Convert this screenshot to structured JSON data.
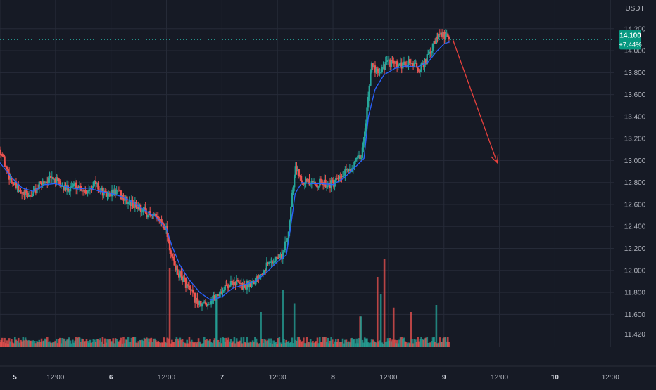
{
  "chart_data": {
    "type": "candlestick",
    "currency": "USDT",
    "price_scale": {
      "range": [
        11.34,
        14.32
      ],
      "ticks": [
        "14.200",
        "14.000",
        "13.800",
        "13.600",
        "13.400",
        "13.200",
        "13.000",
        "12.800",
        "12.600",
        "12.400",
        "12.200",
        "12.000",
        "11.800",
        "11.600",
        "11.420"
      ]
    },
    "time_axis": {
      "labels": [
        "5",
        "12:00",
        "6",
        "12:00",
        "7",
        "12:00",
        "8",
        "12:00",
        "9",
        "12:00",
        "10",
        "12:00"
      ],
      "range_days": [
        5.0,
        10.53
      ]
    },
    "last_price": {
      "value": "14.100",
      "change": "+7.44%",
      "level": 14.1
    },
    "price_path": [
      [
        5.0,
        13.1
      ],
      [
        5.05,
        12.95
      ],
      [
        5.1,
        12.82
      ],
      [
        5.18,
        12.7
      ],
      [
        5.28,
        12.68
      ],
      [
        5.38,
        12.8
      ],
      [
        5.48,
        12.84
      ],
      [
        5.58,
        12.74
      ],
      [
        5.68,
        12.78
      ],
      [
        5.78,
        12.72
      ],
      [
        5.85,
        12.8
      ],
      [
        5.95,
        12.68
      ],
      [
        6.05,
        12.72
      ],
      [
        6.15,
        12.62
      ],
      [
        6.25,
        12.58
      ],
      [
        6.35,
        12.5
      ],
      [
        6.45,
        12.45
      ],
      [
        6.5,
        12.38
      ],
      [
        6.53,
        12.2
      ],
      [
        6.58,
        12.0
      ],
      [
        6.65,
        11.92
      ],
      [
        6.72,
        11.8
      ],
      [
        6.8,
        11.68
      ],
      [
        6.9,
        11.72
      ],
      [
        7.0,
        11.82
      ],
      [
        7.1,
        11.9
      ],
      [
        7.2,
        11.85
      ],
      [
        7.3,
        11.92
      ],
      [
        7.4,
        12.05
      ],
      [
        7.55,
        12.15
      ],
      [
        7.6,
        12.35
      ],
      [
        7.63,
        12.7
      ],
      [
        7.66,
        12.95
      ],
      [
        7.7,
        12.85
      ],
      [
        7.8,
        12.78
      ],
      [
        7.9,
        12.8
      ],
      [
        8.0,
        12.78
      ],
      [
        8.08,
        12.85
      ],
      [
        8.18,
        12.95
      ],
      [
        8.26,
        13.05
      ],
      [
        8.3,
        13.4
      ],
      [
        8.34,
        13.85
      ],
      [
        8.42,
        13.82
      ],
      [
        8.5,
        13.9
      ],
      [
        8.6,
        13.85
      ],
      [
        8.7,
        13.9
      ],
      [
        8.78,
        13.82
      ],
      [
        8.86,
        13.95
      ],
      [
        8.93,
        14.1
      ],
      [
        8.98,
        14.15
      ],
      [
        9.05,
        14.1
      ]
    ],
    "moving_average_path": [
      [
        5.0,
        12.98
      ],
      [
        5.1,
        12.85
      ],
      [
        5.2,
        12.75
      ],
      [
        5.3,
        12.72
      ],
      [
        5.4,
        12.78
      ],
      [
        5.5,
        12.79
      ],
      [
        5.6,
        12.76
      ],
      [
        5.7,
        12.74
      ],
      [
        5.8,
        12.75
      ],
      [
        5.9,
        12.72
      ],
      [
        6.0,
        12.7
      ],
      [
        6.1,
        12.67
      ],
      [
        6.2,
        12.62
      ],
      [
        6.3,
        12.55
      ],
      [
        6.4,
        12.49
      ],
      [
        6.5,
        12.38
      ],
      [
        6.55,
        12.22
      ],
      [
        6.62,
        12.05
      ],
      [
        6.7,
        11.92
      ],
      [
        6.8,
        11.8
      ],
      [
        6.9,
        11.73
      ],
      [
        7.0,
        11.76
      ],
      [
        7.1,
        11.84
      ],
      [
        7.2,
        11.87
      ],
      [
        7.3,
        11.9
      ],
      [
        7.4,
        11.98
      ],
      [
        7.5,
        12.08
      ],
      [
        7.58,
        12.14
      ],
      [
        7.62,
        12.4
      ],
      [
        7.66,
        12.7
      ],
      [
        7.72,
        12.8
      ],
      [
        7.8,
        12.79
      ],
      [
        7.9,
        12.79
      ],
      [
        8.0,
        12.78
      ],
      [
        8.1,
        12.84
      ],
      [
        8.2,
        12.94
      ],
      [
        8.28,
        13.02
      ],
      [
        8.32,
        13.4
      ],
      [
        8.38,
        13.65
      ],
      [
        8.46,
        13.78
      ],
      [
        8.56,
        13.84
      ],
      [
        8.66,
        13.86
      ],
      [
        8.76,
        13.85
      ],
      [
        8.86,
        13.9
      ],
      [
        8.94,
        14.0
      ],
      [
        9.0,
        14.06
      ],
      [
        9.05,
        14.08
      ]
    ],
    "volume_spikes": [
      [
        6.53,
        0.9
      ],
      [
        6.95,
        0.55
      ],
      [
        7.35,
        0.4
      ],
      [
        7.55,
        0.65
      ],
      [
        7.65,
        0.5
      ],
      [
        8.25,
        0.35
      ],
      [
        8.4,
        0.8
      ],
      [
        8.43,
        0.6
      ],
      [
        8.46,
        1.0
      ],
      [
        8.55,
        0.45
      ],
      [
        8.7,
        0.4
      ],
      [
        8.93,
        0.48
      ]
    ],
    "projection_arrow": {
      "from": [
        9.08,
        14.1
      ],
      "to": [
        9.48,
        12.98
      ]
    },
    "colors": {
      "background": "#161a25",
      "grid": "#262b38",
      "up": "#26a69a",
      "down": "#ef5350",
      "moving_average": "#2962ff",
      "arrow": "#e8413d",
      "text": "#b2b5be",
      "label_bg": "#089981"
    },
    "grid": true
  }
}
